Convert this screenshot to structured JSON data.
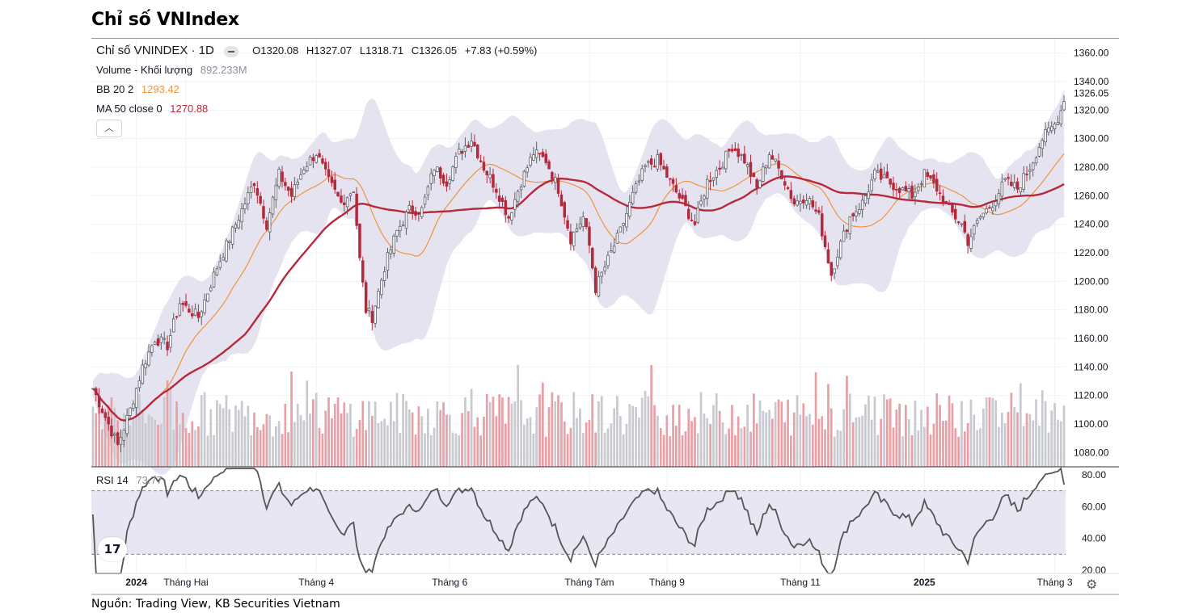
{
  "page": {
    "title": "Chỉ số VNIndex",
    "source": "Nguồn: Trading View, KB Securities Vietnam"
  },
  "legend": {
    "symbol": "Chỉ số VNINDEX · 1D",
    "ohlc": {
      "open": "O1320.08",
      "high": "H1327.07",
      "low": "L1318.71",
      "close": "C1326.05",
      "change": "+7.83 (+0.59%)"
    },
    "volume_label": "Volume - Khối lượng",
    "volume_value": "892.233M",
    "bb_label": "BB 20 2",
    "bb_value": "1293.42",
    "ma_label": "MA 50 close 0",
    "ma_value": "1270.88",
    "rsi_label": "RSI 14",
    "rsi_value": "73.77"
  },
  "icons": {
    "collapse": "chevron-up-icon",
    "logo": "tradingview-logo-icon",
    "settings": "gear-icon",
    "visibility": "eye-icon"
  },
  "colors": {
    "up": "#5b5e66",
    "down": "#b5293a",
    "ma": "#b5293a",
    "bb_basis": "#f0943b",
    "bb_fill": "#e6e3f1",
    "rsi": "#555555",
    "vol_up": "#c8cad0",
    "vol_down": "#e8a0a6"
  },
  "chart_data": {
    "type": "candlestick",
    "title": "Chỉ số VNINDEX · 1D",
    "ylim": [
      1070,
      1370
    ],
    "yticks": [
      1080,
      1100,
      1120,
      1140,
      1160,
      1180,
      1200,
      1220,
      1240,
      1260,
      1280,
      1300,
      1320,
      1340,
      1360
    ],
    "ytick_labels": [
      "1080.00",
      "1100.00",
      "1120.00",
      "1140.00",
      "1160.00",
      "1180.00",
      "1200.00",
      "1220.00",
      "1240.00",
      "1260.00",
      "1280.00",
      "1300.00",
      "1320.00",
      "1340.00",
      "1360.00"
    ],
    "last_price_label": "1326.05",
    "last_price": 1326.05,
    "xticks": [
      {
        "label": "2024",
        "bold": true,
        "idx": 14
      },
      {
        "label": "Tháng Hai",
        "bold": false,
        "idx": 30
      },
      {
        "label": "Tháng 4",
        "bold": false,
        "idx": 72
      },
      {
        "label": "Tháng 6",
        "bold": false,
        "idx": 115
      },
      {
        "label": "Tháng Tám",
        "bold": false,
        "idx": 160
      },
      {
        "label": "Tháng 9",
        "bold": false,
        "idx": 185
      },
      {
        "label": "Tháng 11",
        "bold": false,
        "idx": 228
      },
      {
        "label": "2025",
        "bold": true,
        "idx": 268
      },
      {
        "label": "Tháng 3",
        "bold": false,
        "idx": 310
      }
    ],
    "close_anchors": [
      [
        0,
        1125
      ],
      [
        5,
        1100
      ],
      [
        8,
        1085
      ],
      [
        12,
        1110
      ],
      [
        16,
        1140
      ],
      [
        20,
        1160
      ],
      [
        24,
        1155
      ],
      [
        28,
        1185
      ],
      [
        34,
        1175
      ],
      [
        40,
        1210
      ],
      [
        44,
        1230
      ],
      [
        48,
        1250
      ],
      [
        52,
        1270
      ],
      [
        56,
        1240
      ],
      [
        60,
        1275
      ],
      [
        64,
        1260
      ],
      [
        68,
        1280
      ],
      [
        72,
        1290
      ],
      [
        76,
        1270
      ],
      [
        80,
        1255
      ],
      [
        84,
        1265
      ],
      [
        86,
        1215
      ],
      [
        88,
        1180
      ],
      [
        90,
        1175
      ],
      [
        94,
        1210
      ],
      [
        98,
        1235
      ],
      [
        102,
        1250
      ],
      [
        106,
        1250
      ],
      [
        110,
        1280
      ],
      [
        114,
        1270
      ],
      [
        118,
        1290
      ],
      [
        122,
        1300
      ],
      [
        126,
        1280
      ],
      [
        130,
        1265
      ],
      [
        134,
        1245
      ],
      [
        138,
        1270
      ],
      [
        142,
        1290
      ],
      [
        146,
        1285
      ],
      [
        150,
        1265
      ],
      [
        154,
        1230
      ],
      [
        158,
        1245
      ],
      [
        160,
        1225
      ],
      [
        162,
        1195
      ],
      [
        166,
        1215
      ],
      [
        170,
        1235
      ],
      [
        174,
        1260
      ],
      [
        178,
        1280
      ],
      [
        182,
        1285
      ],
      [
        186,
        1270
      ],
      [
        190,
        1255
      ],
      [
        194,
        1240
      ],
      [
        198,
        1270
      ],
      [
        202,
        1280
      ],
      [
        206,
        1295
      ],
      [
        210,
        1285
      ],
      [
        214,
        1265
      ],
      [
        218,
        1290
      ],
      [
        222,
        1275
      ],
      [
        226,
        1255
      ],
      [
        230,
        1260
      ],
      [
        234,
        1245
      ],
      [
        236,
        1225
      ],
      [
        238,
        1205
      ],
      [
        240,
        1220
      ],
      [
        244,
        1245
      ],
      [
        248,
        1255
      ],
      [
        252,
        1275
      ],
      [
        256,
        1270
      ],
      [
        260,
        1265
      ],
      [
        264,
        1260
      ],
      [
        268,
        1275
      ],
      [
        272,
        1265
      ],
      [
        276,
        1250
      ],
      [
        280,
        1240
      ],
      [
        282,
        1228
      ],
      [
        286,
        1245
      ],
      [
        290,
        1255
      ],
      [
        294,
        1270
      ],
      [
        298,
        1265
      ],
      [
        302,
        1280
      ],
      [
        306,
        1300
      ],
      [
        310,
        1310
      ],
      [
        312,
        1320
      ],
      [
        313,
        1326
      ]
    ],
    "candle_count": 314,
    "volume_ylim": [
      0,
      100
    ],
    "rsi": {
      "ylim": [
        18,
        84
      ],
      "yticks": [
        20,
        40,
        60,
        80
      ],
      "ytick_labels": [
        "20.00",
        "40.00",
        "60.00",
        "80.00"
      ],
      "upper": 70,
      "lower": 30,
      "last": 73.77
    }
  }
}
